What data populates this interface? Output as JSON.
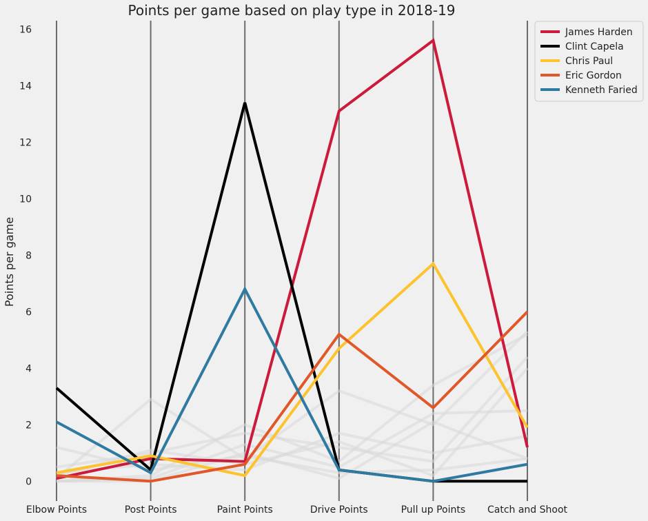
{
  "chart_data": {
    "type": "line",
    "title": "Points per game based on play type in 2018-19",
    "ylabel": "Points per game",
    "xlabel": "",
    "categories": [
      "Elbow Points",
      "Post Points",
      "Paint Points",
      "Drive Points",
      "Pull up Points",
      "Catch and Shoot"
    ],
    "ylim": [
      -0.7,
      16.3
    ],
    "yticks": [
      0,
      2,
      4,
      6,
      8,
      10,
      12,
      14,
      16
    ],
    "grid": "vertical lines at each category",
    "legend_position": "top-right, outside plot",
    "series": [
      {
        "name": "James Harden",
        "color": "#cc1a3d",
        "values": [
          0.1,
          0.8,
          0.7,
          13.1,
          15.6,
          1.2
        ]
      },
      {
        "name": "Clint Capela",
        "color": "#000000",
        "values": [
          3.3,
          0.4,
          13.4,
          0.4,
          0.0,
          0.0
        ]
      },
      {
        "name": "Chris Paul",
        "color": "#fdc32e",
        "values": [
          0.3,
          0.9,
          0.2,
          4.7,
          7.7,
          1.9
        ]
      },
      {
        "name": "Eric Gordon",
        "color": "#e0582a",
        "values": [
          0.2,
          0.0,
          0.6,
          5.2,
          2.6,
          6.0
        ]
      },
      {
        "name": "Kenneth Faried",
        "color": "#2e7aa0",
        "values": [
          2.1,
          0.3,
          6.8,
          0.4,
          0.0,
          0.6
        ]
      }
    ],
    "background_series": [
      {
        "color": "#d9d9d9",
        "values": [
          0.1,
          2.9,
          0.8,
          3.2,
          2.0,
          5.3
        ]
      },
      {
        "color": "#d9d9d9",
        "values": [
          0.5,
          1.0,
          1.7,
          1.2,
          0.7,
          4.4
        ]
      },
      {
        "color": "#d9d9d9",
        "values": [
          0.0,
          0.1,
          1.3,
          0.5,
          2.4,
          2.5
        ]
      },
      {
        "color": "#d9d9d9",
        "values": [
          0.3,
          0.6,
          0.4,
          1.7,
          1.0,
          1.6
        ]
      },
      {
        "color": "#d9d9d9",
        "values": [
          0.0,
          0.2,
          2.0,
          0.7,
          3.4,
          5.2
        ]
      },
      {
        "color": "#d9d9d9",
        "values": [
          1.2,
          0.4,
          0.9,
          0.3,
          0.4,
          0.8
        ]
      },
      {
        "color": "#d9d9d9",
        "values": [
          0.2,
          1.1,
          0.6,
          1.4,
          0.2,
          4.0
        ]
      },
      {
        "color": "#d9d9d9",
        "values": [
          0.0,
          0.0,
          1.0,
          0.1,
          2.1,
          0.8
        ]
      }
    ]
  }
}
